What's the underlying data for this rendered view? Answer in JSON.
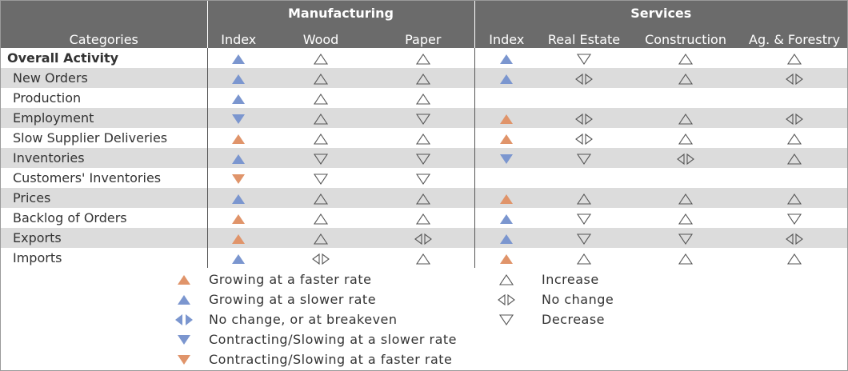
{
  "header": {
    "group_manufacturing": "Manufacturing",
    "group_services": "Services",
    "categories_label": "Categories",
    "columns": [
      "Index",
      "Wood",
      "Paper",
      "Index",
      "Real Estate",
      "Construction",
      "Ag. & Forestry"
    ]
  },
  "rows": [
    {
      "label": "Overall Activity",
      "cells": [
        "blue-up",
        "up",
        "up",
        "blue-up",
        "down",
        "up",
        "up"
      ]
    },
    {
      "label": "New Orders",
      "cells": [
        "blue-up",
        "up",
        "up",
        "blue-up",
        "nochange",
        "up",
        "nochange"
      ]
    },
    {
      "label": "Production",
      "cells": [
        "blue-up",
        "up",
        "up",
        "",
        "",
        "",
        ""
      ]
    },
    {
      "label": "Employment",
      "cells": [
        "blue-down",
        "up",
        "down",
        "orange-up",
        "nochange",
        "up",
        "nochange"
      ]
    },
    {
      "label": "Slow Supplier Deliveries",
      "cells": [
        "orange-up",
        "up",
        "up",
        "orange-up",
        "nochange",
        "up",
        "up"
      ]
    },
    {
      "label": "Inventories",
      "cells": [
        "blue-up",
        "down",
        "down",
        "blue-down",
        "down",
        "nochange",
        "up"
      ]
    },
    {
      "label": "Customers' Inventories",
      "cells": [
        "orange-down",
        "down",
        "down",
        "",
        "",
        "",
        ""
      ]
    },
    {
      "label": "Prices",
      "cells": [
        "blue-up",
        "up",
        "up",
        "orange-up",
        "up",
        "up",
        "up"
      ]
    },
    {
      "label": "Backlog of Orders",
      "cells": [
        "orange-up",
        "up",
        "up",
        "blue-up",
        "down",
        "up",
        "down"
      ]
    },
    {
      "label": "Exports",
      "cells": [
        "orange-up",
        "up",
        "nochange",
        "blue-up",
        "down",
        "down",
        "nochange"
      ]
    },
    {
      "label": "Imports",
      "cells": [
        "blue-up",
        "nochange",
        "up",
        "orange-up",
        "up",
        "up",
        "up"
      ]
    }
  ],
  "legend": {
    "left": [
      {
        "icon": "orange-up",
        "label": "Growing at a faster rate"
      },
      {
        "icon": "blue-up",
        "label": "Growing at a slower rate"
      },
      {
        "icon": "blue-nochange",
        "label": "No change, or at breakeven"
      },
      {
        "icon": "blue-down",
        "label": "Contracting/Slowing at a slower rate"
      },
      {
        "icon": "orange-down",
        "label": "Contracting/Slowing at a faster rate"
      }
    ],
    "right": [
      {
        "icon": "up",
        "label": "Increase"
      },
      {
        "icon": "nochange",
        "label": "No change"
      },
      {
        "icon": "down",
        "label": "Decrease"
      }
    ]
  },
  "colors": {
    "blue": "#7b96cf",
    "orange": "#e0946a",
    "outline": "#555555",
    "header_bg": "#6b6b6b",
    "alt_row_bg": "#dcdcdc"
  }
}
